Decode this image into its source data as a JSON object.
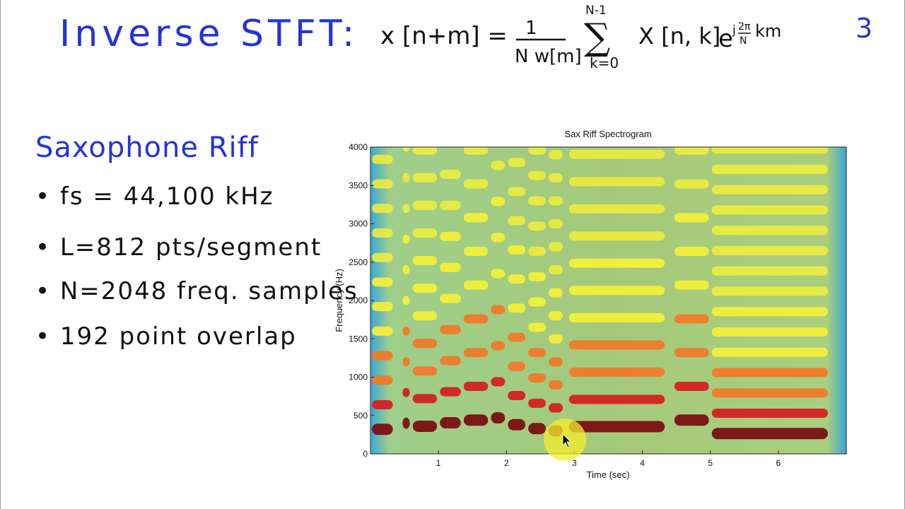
{
  "slide": {
    "title": "Inverse STFT:",
    "formula": {
      "lhs": "x [n+m] =",
      "numerator": "1",
      "denominator": "N w[m]",
      "sum_top": "N-1",
      "sum_bottom": "k=0",
      "body": "X [n, k]",
      "exp_base": "e",
      "exp_j": "j",
      "exp_frac_num": "2π",
      "exp_frac_den": "N",
      "exp_tail": "km"
    },
    "page_number": "3",
    "subtitle": "Saxophone Riff",
    "bullets": [
      "• fs = 44,100 kHz",
      "• L=812 pts/segment",
      "• N=2048 freq. samples",
      "• 192 point overlap"
    ]
  },
  "chart_data": {
    "type": "heatmap",
    "title": "Sax Riff Spectrogram",
    "xlabel": "Time (sec)",
    "ylabel": "Frequency (Hz)",
    "xlim": [
      0,
      7
    ],
    "ylim": [
      0,
      4000
    ],
    "x_ticks": [
      1,
      2,
      3,
      4,
      5,
      6
    ],
    "y_ticks": [
      0,
      500,
      1000,
      1500,
      2000,
      2500,
      3000,
      3500,
      4000
    ],
    "colormap": [
      "#3aa6d9",
      "#9fd07a",
      "#f2ef3a",
      "#f07a2a",
      "#d42020",
      "#7a0f12"
    ],
    "notes": [
      {
        "t0": 0.0,
        "t1": 0.35,
        "f0": 320
      },
      {
        "t0": 0.45,
        "t1": 0.6,
        "f0": 400
      },
      {
        "t0": 0.6,
        "t1": 1.0,
        "f0": 360
      },
      {
        "t0": 1.0,
        "t1": 1.35,
        "f0": 405
      },
      {
        "t0": 1.35,
        "t1": 1.75,
        "f0": 440
      },
      {
        "t0": 1.75,
        "t1": 2.0,
        "f0": 470
      },
      {
        "t0": 2.0,
        "t1": 2.3,
        "f0": 380
      },
      {
        "t0": 2.3,
        "t1": 2.6,
        "f0": 330
      },
      {
        "t0": 2.6,
        "t1": 2.85,
        "f0": 300
      },
      {
        "t0": 2.9,
        "t1": 4.35,
        "f0": 355
      },
      {
        "t0": 4.45,
        "t1": 5.0,
        "f0": 440
      },
      {
        "t0": 5.0,
        "t1": 6.75,
        "f0": 265
      }
    ]
  }
}
